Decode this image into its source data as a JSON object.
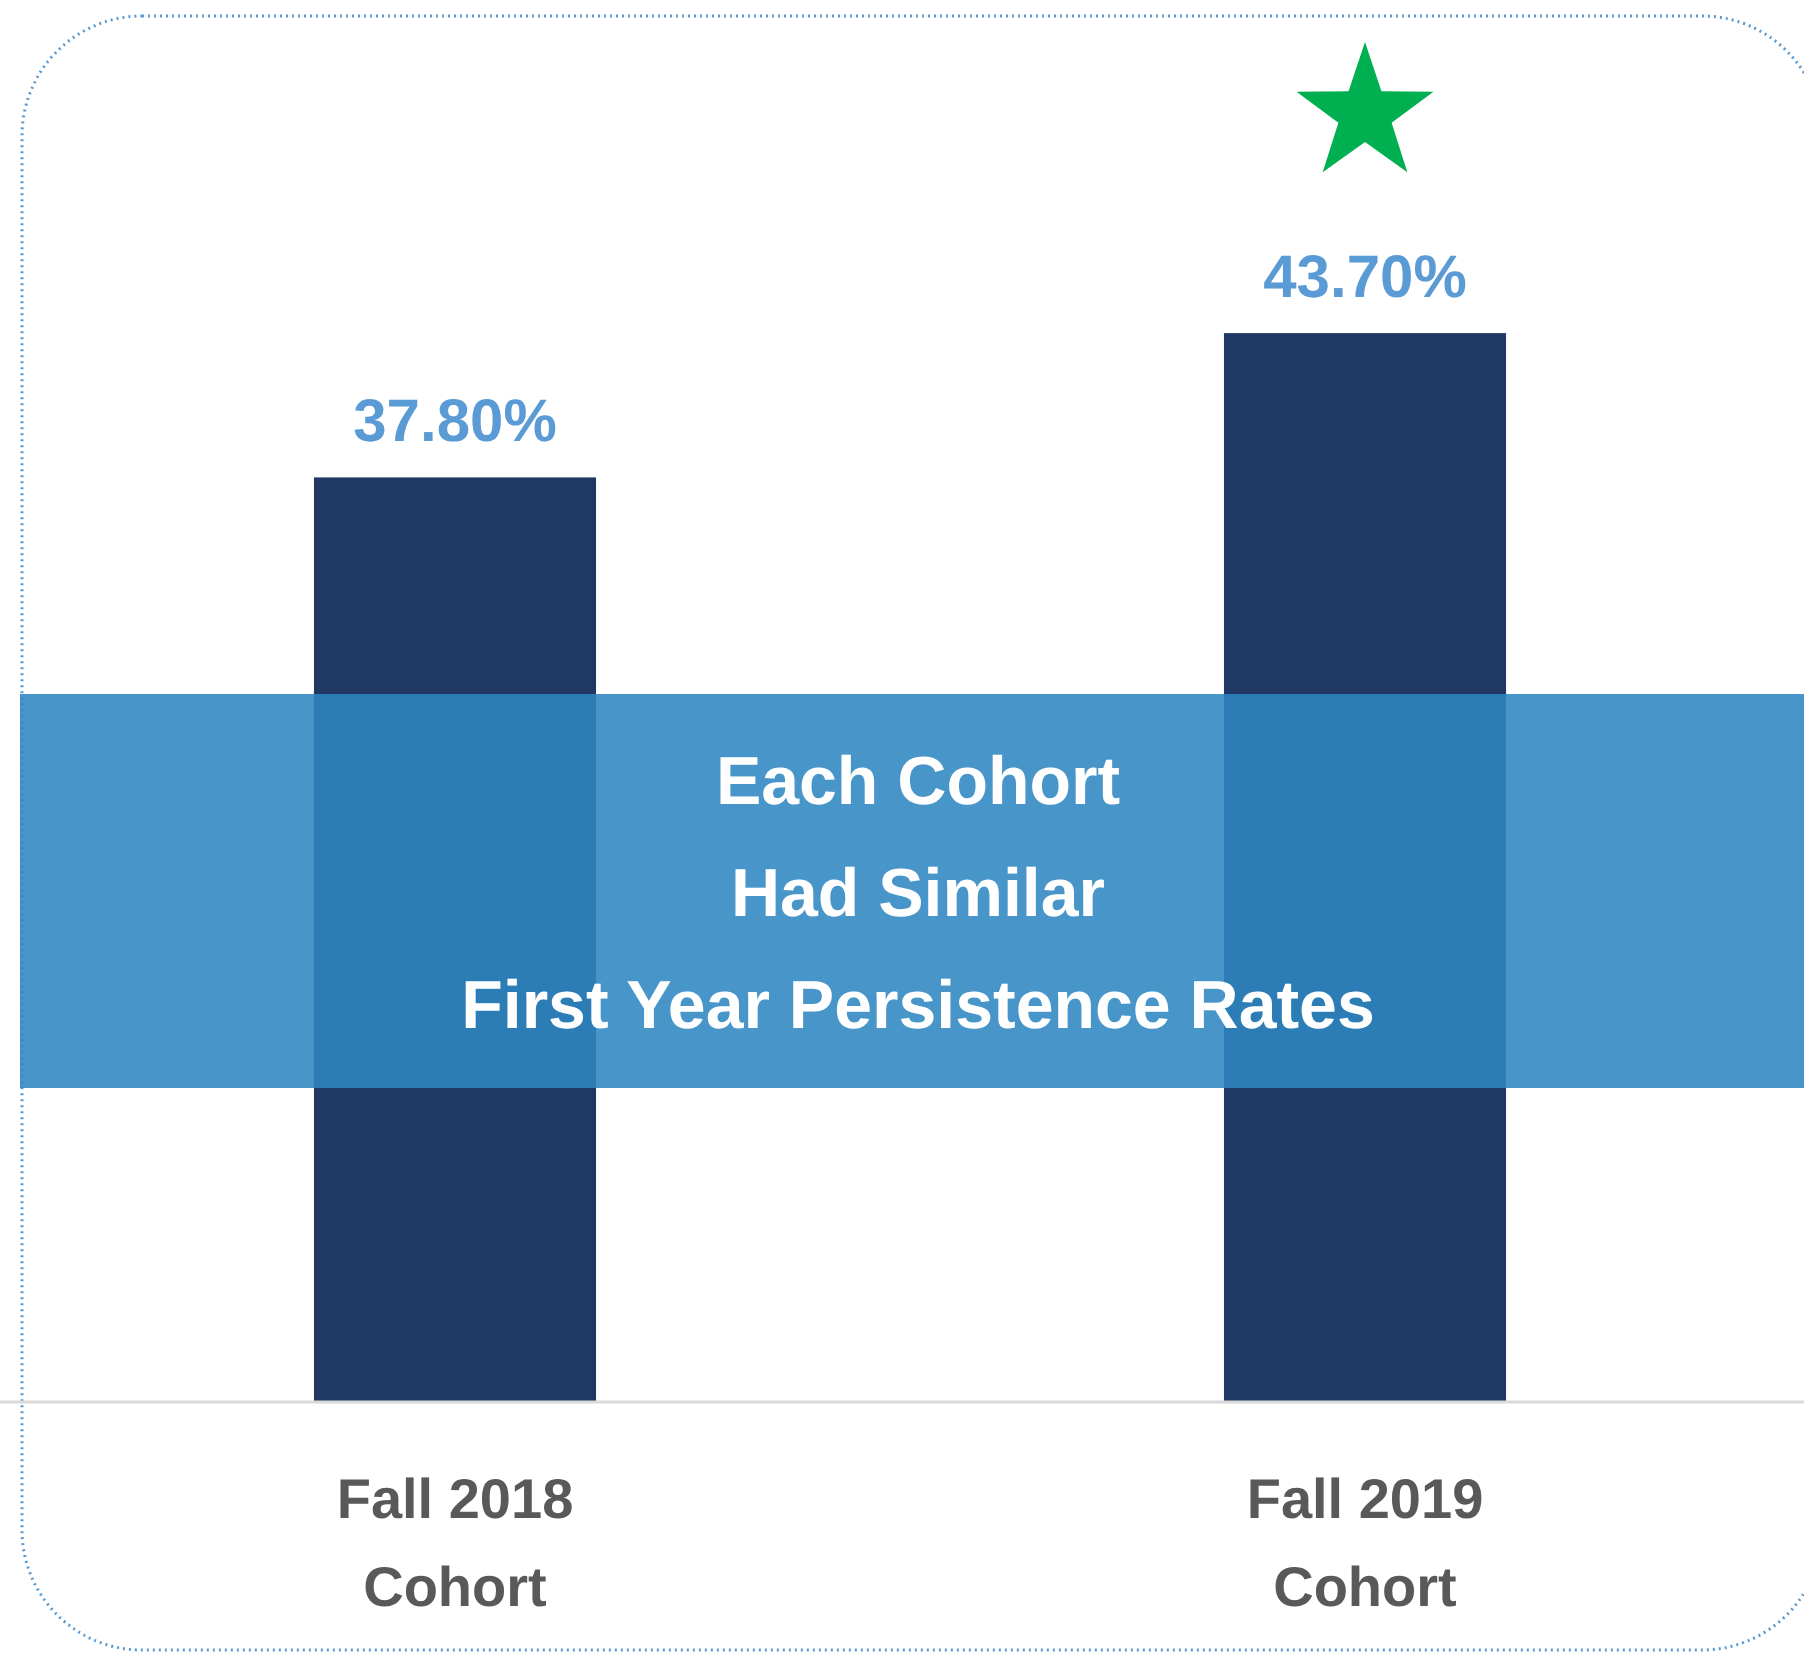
{
  "chart_data": {
    "type": "bar",
    "categories": [
      "Fall 2018\nCohort",
      "Fall 2019\nCohort"
    ],
    "values": [
      37.8,
      43.7
    ],
    "color": "#203864",
    "value_labels": [
      "37.80%",
      "43.70%"
    ],
    "tick_labels": "x",
    "annotations": [
      "Each Cohort\nHad Similar\nFirst Year Persistence Rates"
    ]
  }
}
